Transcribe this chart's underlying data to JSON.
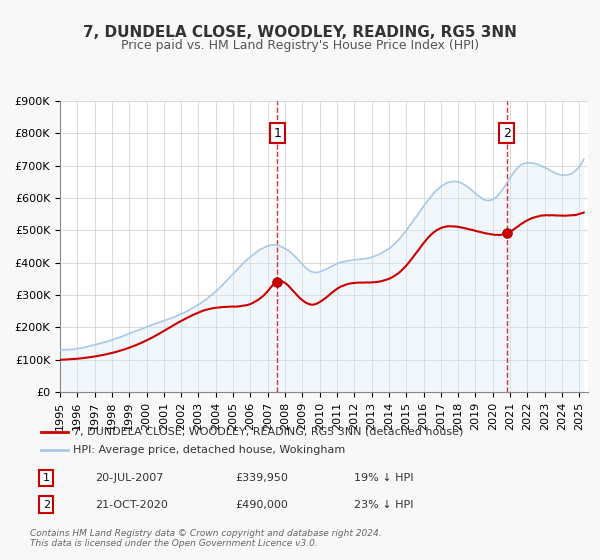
{
  "title": "7, DUNDELA CLOSE, WOODLEY, READING, RG5 3NN",
  "subtitle": "Price paid vs. HM Land Registry's House Price Index (HPI)",
  "xlabel": "",
  "ylabel": "",
  "ylim": [
    0,
    900000
  ],
  "yticks": [
    0,
    100000,
    200000,
    300000,
    400000,
    500000,
    600000,
    700000,
    800000,
    900000
  ],
  "ytick_labels": [
    "£0",
    "£100K",
    "£200K",
    "£300K",
    "£400K",
    "£500K",
    "£600K",
    "£700K",
    "£800K",
    "£900K"
  ],
  "xlim_start": 1995.0,
  "xlim_end": 2025.5,
  "xtick_years": [
    1995,
    1996,
    1997,
    1998,
    1999,
    2000,
    2001,
    2002,
    2003,
    2004,
    2005,
    2006,
    2007,
    2008,
    2009,
    2010,
    2011,
    2012,
    2013,
    2014,
    2015,
    2016,
    2017,
    2018,
    2019,
    2020,
    2021,
    2022,
    2023,
    2024,
    2025
  ],
  "hpi_color": "#a8c8e8",
  "hpi_fill_color": "#daeaf8",
  "property_color": "#cc0000",
  "property_linewidth": 1.5,
  "hpi_linewidth": 1.2,
  "marker1_x": 2007.55,
  "marker1_y": 339950,
  "marker2_x": 2020.8,
  "marker2_y": 490000,
  "vline1_x": 2007.55,
  "vline2_x": 2020.8,
  "annotation1_label": "1",
  "annotation2_label": "2",
  "legend_property_label": "7, DUNDELA CLOSE, WOODLEY, READING, RG5 3NN (detached house)",
  "legend_hpi_label": "HPI: Average price, detached house, Wokingham",
  "table_row1": [
    "1",
    "20-JUL-2007",
    "£339,950",
    "19% ↓ HPI"
  ],
  "table_row2": [
    "2",
    "21-OCT-2020",
    "£490,000",
    "23% ↓ HPI"
  ],
  "footnote1": "Contains HM Land Registry data © Crown copyright and database right 2024.",
  "footnote2": "This data is licensed under the Open Government Licence v3.0.",
  "bg_color": "#f8f8f8",
  "plot_bg_color": "#ffffff",
  "grid_color": "#cccccc",
  "title_fontsize": 11,
  "subtitle_fontsize": 9,
  "tick_fontsize": 8,
  "legend_fontsize": 8,
  "footnote_fontsize": 6.5
}
